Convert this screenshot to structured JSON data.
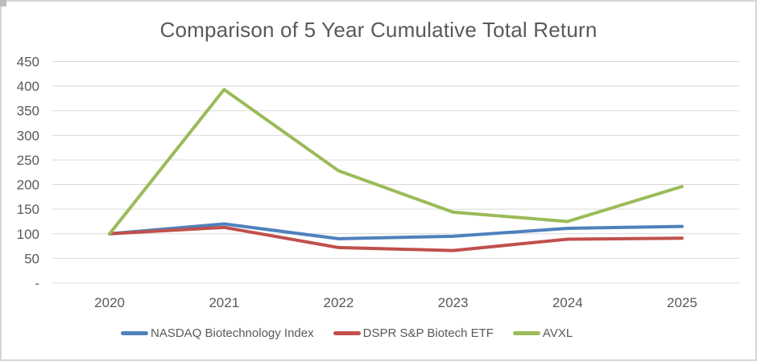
{
  "chart": {
    "background_color": "#FFFFFF",
    "border_color": "#D6D6D6",
    "text_color": "#595959",
    "gridline_color": "#D9D9D9"
  },
  "chart_data": {
    "type": "line",
    "title": "Comparison of 5 Year Cumulative Total Return",
    "xlabel": "",
    "ylabel": "",
    "categories": [
      "2020",
      "2021",
      "2022",
      "2023",
      "2024",
      "2025"
    ],
    "series": [
      {
        "name": "NASDAQ Biotechnology Index",
        "color": "#4F81BD",
        "values": [
          100,
          120,
          90,
          95,
          111,
          115
        ]
      },
      {
        "name": "DSPR S&P Biotech ETF",
        "color": "#C0504D",
        "values": [
          100,
          113,
          72,
          66,
          89,
          91
        ]
      },
      {
        "name": "AVXL",
        "color": "#9BBB59",
        "values": [
          100,
          393,
          228,
          144,
          125,
          196
        ]
      }
    ],
    "ylim": [
      0,
      450
    ],
    "y_ticks": [
      {
        "value": 450,
        "label": "450"
      },
      {
        "value": 400,
        "label": "400"
      },
      {
        "value": 350,
        "label": "350"
      },
      {
        "value": 300,
        "label": "300"
      },
      {
        "value": 250,
        "label": "250"
      },
      {
        "value": 200,
        "label": "200"
      },
      {
        "value": 150,
        "label": "150"
      },
      {
        "value": 100,
        "label": "100"
      },
      {
        "value": 50,
        "label": "50"
      },
      {
        "value": 0,
        "label": "-"
      }
    ],
    "grid": true,
    "legend_position": "bottom"
  }
}
